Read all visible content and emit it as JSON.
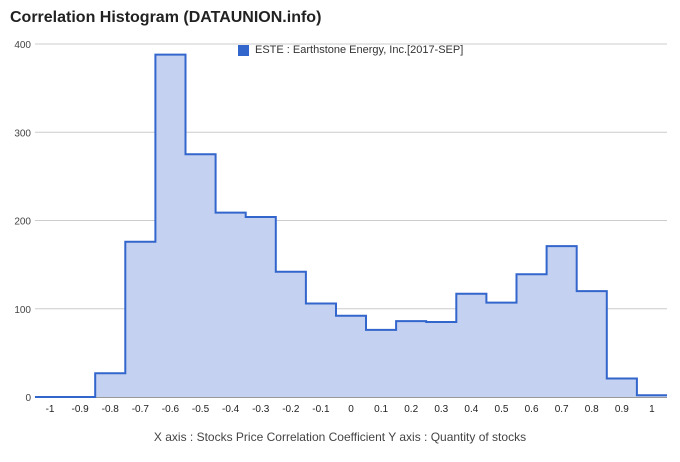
{
  "title": "Correlation Histogram (DATAUNION.info)",
  "xaxis_caption": "X axis : Stocks Price Correlation Coefficient  Y axis : Quantity of stocks",
  "colors": {
    "line": "#3366cc",
    "fill": "#c5d1f0",
    "grid": "#cccccc",
    "axis": "#333333"
  },
  "chart_data": {
    "type": "area",
    "style": "stepped histogram",
    "x": [
      -1,
      -0.9,
      -0.8,
      -0.7,
      -0.6,
      -0.5,
      -0.4,
      -0.3,
      -0.2,
      -0.1,
      0,
      0.1,
      0.2,
      0.3,
      0.4,
      0.5,
      0.6,
      0.7,
      0.8,
      0.9,
      1
    ],
    "x_tick_labels": [
      "-1",
      "-0.9",
      "-0.8",
      "-0.7",
      "-0.6",
      "-0.5",
      "-0.4",
      "-0.3",
      "-0.2",
      "-0.1",
      "0",
      "0.1",
      "0.2",
      "0.3",
      "0.4",
      "0.5",
      "0.6",
      "0.7",
      "0.8",
      "0.9",
      "1"
    ],
    "series": [
      {
        "name": "ESTE : Earthstone Energy, Inc.[2017-SEP]",
        "values": [
          0,
          0,
          27,
          176,
          388,
          275,
          209,
          204,
          142,
          106,
          92,
          76,
          86,
          85,
          117,
          107,
          139,
          171,
          120,
          21,
          2
        ]
      }
    ],
    "ylim": [
      0,
      400
    ],
    "y_ticks": [
      0,
      100,
      200,
      300,
      400
    ],
    "xlim": [
      -1.05,
      1.05
    ],
    "grid": true,
    "legend_position": "top"
  }
}
